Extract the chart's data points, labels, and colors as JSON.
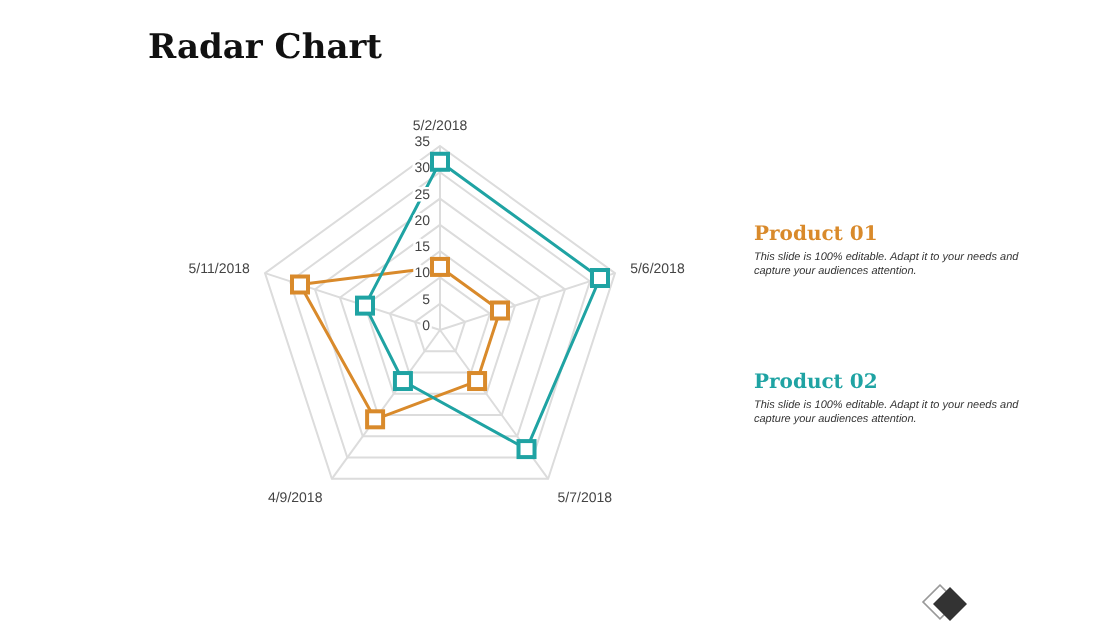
{
  "chart_data": {
    "type": "radar",
    "title": "Radar Chart",
    "categories": [
      "5/2/2018",
      "5/6/2018",
      "5/7/2018",
      "4/9/2018",
      "5/11/2018"
    ],
    "series": [
      {
        "name": "Product 01",
        "color": "#d98a2b",
        "values": [
          12,
          12,
          12,
          21,
          28
        ]
      },
      {
        "name": "Product 02",
        "color": "#1fa3a3",
        "values": [
          32,
          32,
          28,
          12,
          15
        ]
      }
    ],
    "ylim": [
      0,
      35
    ],
    "yticks": [
      0,
      5,
      10,
      15,
      20,
      25,
      30,
      35
    ],
    "grid": true,
    "marker": "square",
    "annotations": [
      "This slide is 100% editable. Adapt it to your needs and capture your audiences attention.",
      "This slide is 100% editable. Adapt it to your needs and capture your audiences attention."
    ]
  }
}
